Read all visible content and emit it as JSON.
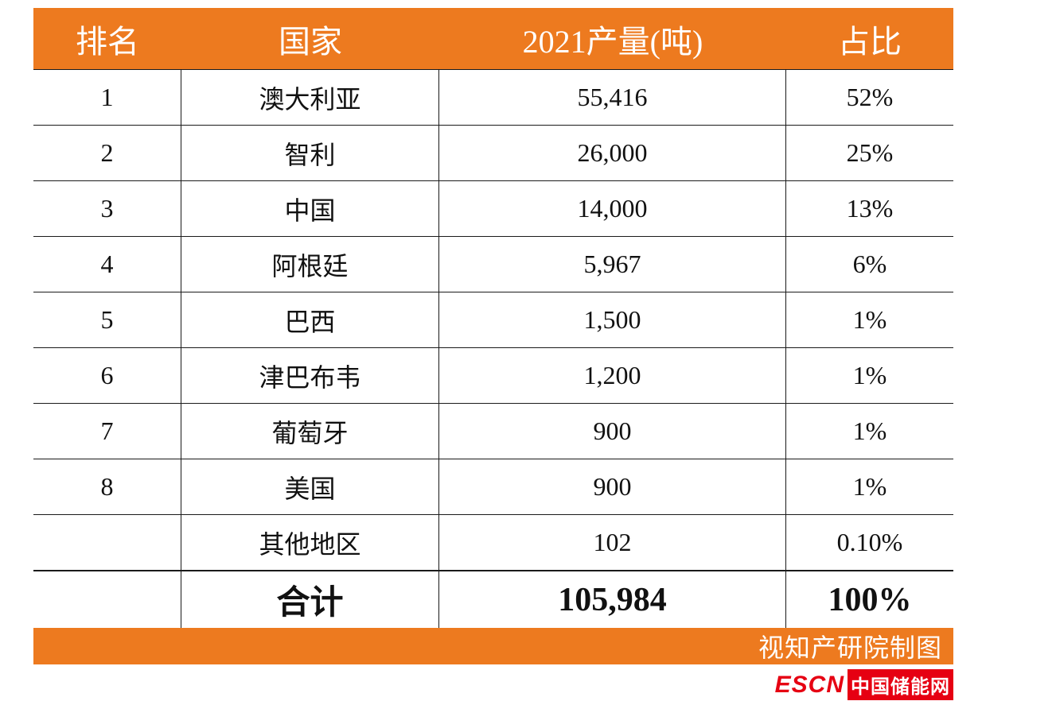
{
  "table": {
    "headers": [
      "排名",
      "国家",
      "2021产量(吨)",
      "占比"
    ],
    "rows": [
      {
        "rank": "1",
        "country": "澳大利亚",
        "output": "55,416",
        "share": "52%"
      },
      {
        "rank": "2",
        "country": "智利",
        "output": "26,000",
        "share": "25%"
      },
      {
        "rank": "3",
        "country": "中国",
        "output": "14,000",
        "share": "13%"
      },
      {
        "rank": "4",
        "country": "阿根廷",
        "output": "5,967",
        "share": "6%"
      },
      {
        "rank": "5",
        "country": "巴西",
        "output": "1,500",
        "share": "1%"
      },
      {
        "rank": "6",
        "country": "津巴布韦",
        "output": "1,200",
        "share": "1%"
      },
      {
        "rank": "7",
        "country": "葡萄牙",
        "output": "900",
        "share": "1%"
      },
      {
        "rank": "8",
        "country": "美国",
        "output": "900",
        "share": "1%"
      },
      {
        "rank": "",
        "country": "其他地区",
        "output": "102",
        "share": "0.10%"
      },
      {
        "rank": "",
        "country": "合计",
        "output": "105,984",
        "share": "100%"
      }
    ],
    "credit": "视知产研院制图"
  },
  "logo": {
    "en": "ESCN",
    "cn": "中国储能网"
  },
  "colors": {
    "accent_orange": "#ED7A1F",
    "logo_red": "#E60012",
    "text_black": "#111111",
    "header_text": "#FFFFFF"
  },
  "chart_data": {
    "type": "table",
    "title": "2021产量(吨) 国家排名",
    "columns": [
      "排名",
      "国家",
      "2021产量(吨)",
      "占比"
    ],
    "categories": [
      "澳大利亚",
      "智利",
      "中国",
      "阿根廷",
      "巴西",
      "津巴布韦",
      "葡萄牙",
      "美国",
      "其他地区"
    ],
    "series": [
      {
        "name": "2021产量(吨)",
        "values": [
          55416,
          26000,
          14000,
          5967,
          1500,
          1200,
          900,
          900,
          102
        ]
      },
      {
        "name": "占比(%)",
        "values": [
          52,
          25,
          13,
          6,
          1,
          1,
          1,
          1,
          0.1
        ]
      }
    ],
    "total": {
      "label": "合计",
      "output": 105984,
      "share_percent": 100
    },
    "source_credit": "视知产研院制图"
  }
}
